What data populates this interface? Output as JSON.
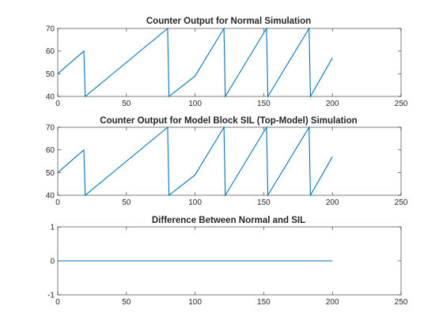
{
  "chart_data": [
    {
      "type": "line",
      "title": "Counter Output for Normal Simulation",
      "xlim": [
        0,
        250
      ],
      "ylim": [
        40,
        70
      ],
      "xticks": [
        "0",
        "50",
        "100",
        "150",
        "200",
        "250"
      ],
      "yticks": [
        "40",
        "50",
        "60",
        "70"
      ],
      "line_color": "#0072BD",
      "series": [
        {
          "x": [
            0,
            19,
            20,
            80,
            81,
            100,
            121,
            122,
            152,
            153,
            183,
            184,
            200
          ],
          "y": [
            50,
            60,
            40,
            70,
            40,
            49,
            70,
            40,
            70,
            40,
            70,
            40,
            57
          ]
        }
      ]
    },
    {
      "type": "line",
      "title": "Counter Output for Model Block SIL (Top-Model) Simulation",
      "xlim": [
        0,
        250
      ],
      "ylim": [
        40,
        70
      ],
      "xticks": [
        "0",
        "50",
        "100",
        "150",
        "200",
        "250"
      ],
      "yticks": [
        "40",
        "50",
        "60",
        "70"
      ],
      "line_color": "#0072BD",
      "series": [
        {
          "x": [
            0,
            19,
            20,
            80,
            81,
            100,
            121,
            122,
            152,
            153,
            183,
            184,
            200
          ],
          "y": [
            50,
            60,
            40,
            70,
            40,
            49,
            70,
            40,
            70,
            40,
            70,
            40,
            57
          ]
        }
      ]
    },
    {
      "type": "line",
      "title": "Difference Between Normal and SIL",
      "xlim": [
        0,
        250
      ],
      "ylim": [
        -1,
        1
      ],
      "xticks": [
        "0",
        "50",
        "100",
        "150",
        "200",
        "250"
      ],
      "yticks": [
        "-1",
        "0",
        "1"
      ],
      "line_color": "#0072BD",
      "series": [
        {
          "x": [
            0,
            200
          ],
          "y": [
            0,
            0
          ]
        }
      ]
    }
  ]
}
